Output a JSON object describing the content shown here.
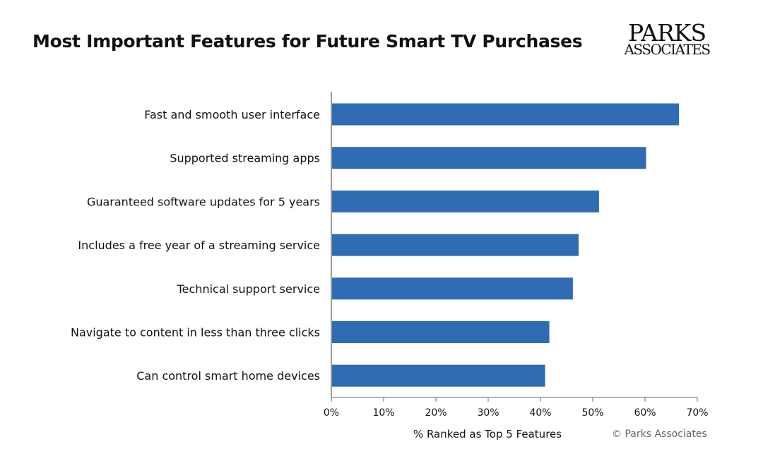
{
  "title": "Most Important Features for Future Smart TV Purchases",
  "logo": {
    "top": "PARKS",
    "bottom": "ASSOCIATES"
  },
  "copyright": "© Parks Associates",
  "colors": {
    "bar": "#2f6cb4",
    "axis": "#9a9a9a",
    "text": "#111111"
  },
  "chart_data": {
    "type": "bar",
    "orientation": "horizontal",
    "categories": [
      "Fast and smooth user interface",
      "Supported streaming apps",
      "Guaranteed software updates for 5 years",
      "Includes a free year of a streaming service",
      "Technical support service",
      "Navigate to content in less than three clicks",
      "Can control smart home devices"
    ],
    "values": [
      66.5,
      60.2,
      51.2,
      47.3,
      46.2,
      41.7,
      40.9
    ],
    "xlabel": "% Ranked as Top 5 Features",
    "xlim": [
      0,
      70
    ],
    "xticks": [
      "0%",
      "10%",
      "20%",
      "30%",
      "40%",
      "50%",
      "60%",
      "70%"
    ],
    "grid": false,
    "legend": "none"
  }
}
